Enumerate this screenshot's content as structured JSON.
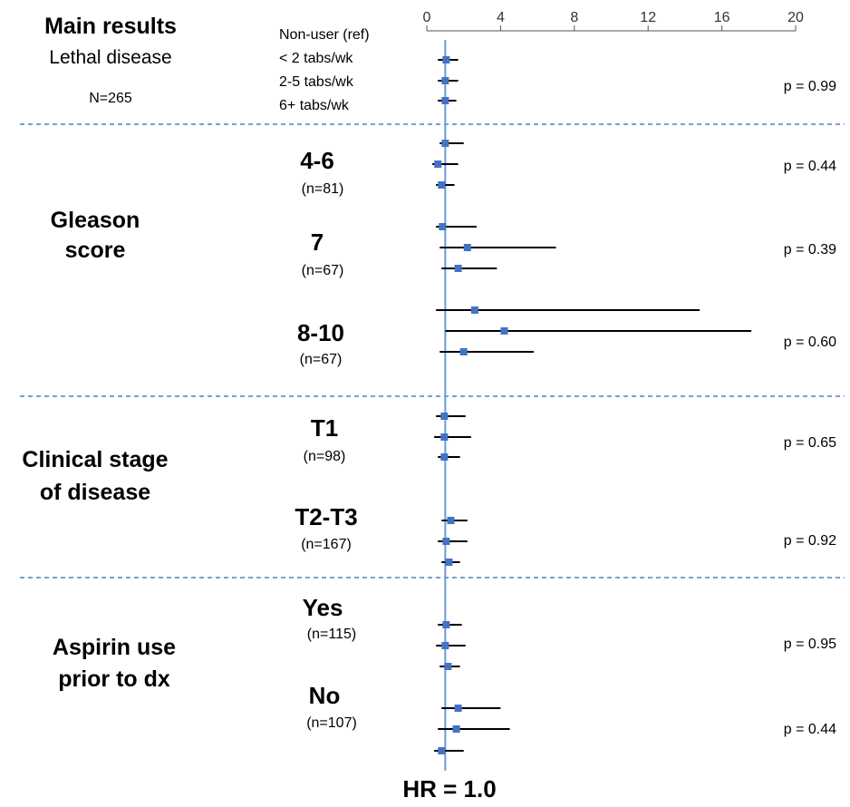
{
  "header": {
    "title": "Main results",
    "subtitle": "Lethal disease",
    "n_label": "N=265",
    "ref_labels": [
      "Non-user (ref)",
      "< 2 tabs/wk",
      "2-5 tabs/wk",
      "6+ tabs/wk"
    ]
  },
  "sections": {
    "gleason_title_1": "Gleason",
    "gleason_title_2": "score",
    "stage_title_1": "Clinical stage",
    "stage_title_2": "of disease",
    "aspirin_title_1": "Aspirin use",
    "aspirin_title_2": "prior to dx"
  },
  "subgroups": {
    "g46": {
      "label": "4-6",
      "n": "(n=81)"
    },
    "g7": {
      "label": "7",
      "n": "(n=67)"
    },
    "g810": {
      "label": "8-10",
      "n": "(n=67)"
    },
    "t1": {
      "label": "T1",
      "n": "(n=98)"
    },
    "t2t3": {
      "label": "T2-T3",
      "n": "(n=167)"
    },
    "yes": {
      "label": "Yes",
      "n": "(n=115)"
    },
    "no": {
      "label": "No",
      "n": "(n=107)"
    }
  },
  "footer": {
    "hr_label": "HR = 1.0"
  },
  "colors": {
    "marker": "#4472c4",
    "ref_line": "#6a9bd8",
    "dashed": "#4f81bd",
    "ci": "#000000"
  },
  "chart_data": {
    "type": "scatter",
    "title": "",
    "xlabel": "HR = 1.0",
    "xlim": [
      0,
      20
    ],
    "x_ticks": [
      0,
      4,
      8,
      12,
      16,
      20
    ],
    "reference_line": 1.0,
    "grid": false,
    "rows": [
      {
        "group": "Main results",
        "hr": 1.05,
        "lo": 0.6,
        "hi": 1.7
      },
      {
        "group": "Main results",
        "hr": 1.0,
        "lo": 0.6,
        "hi": 1.7
      },
      {
        "group": "Main results",
        "hr": 1.0,
        "lo": 0.6,
        "hi": 1.6
      },
      {
        "group": "Gleason 4-6",
        "hr": 1.0,
        "lo": 0.7,
        "hi": 2.0
      },
      {
        "group": "Gleason 4-6",
        "hr": 0.6,
        "lo": 0.3,
        "hi": 1.7
      },
      {
        "group": "Gleason 4-6",
        "hr": 0.8,
        "lo": 0.5,
        "hi": 1.5
      },
      {
        "group": "Gleason 7",
        "hr": 0.85,
        "lo": 0.5,
        "hi": 2.7
      },
      {
        "group": "Gleason 7",
        "hr": 2.2,
        "lo": 0.7,
        "hi": 7.0
      },
      {
        "group": "Gleason 7",
        "hr": 1.7,
        "lo": 0.8,
        "hi": 3.8
      },
      {
        "group": "Gleason 8-10",
        "hr": 2.6,
        "lo": 0.5,
        "hi": 14.8
      },
      {
        "group": "Gleason 8-10",
        "hr": 4.2,
        "lo": 1.0,
        "hi": 17.6
      },
      {
        "group": "Gleason 8-10",
        "hr": 2.0,
        "lo": 0.7,
        "hi": 5.8
      },
      {
        "group": "T1",
        "hr": 0.95,
        "lo": 0.5,
        "hi": 2.1
      },
      {
        "group": "T1",
        "hr": 0.95,
        "lo": 0.4,
        "hi": 2.4
      },
      {
        "group": "T1",
        "hr": 0.95,
        "lo": 0.6,
        "hi": 1.8
      },
      {
        "group": "T2-T3",
        "hr": 1.3,
        "lo": 0.8,
        "hi": 2.2
      },
      {
        "group": "T2-T3",
        "hr": 1.05,
        "lo": 0.6,
        "hi": 2.2
      },
      {
        "group": "T2-T3",
        "hr": 1.2,
        "lo": 0.8,
        "hi": 1.8
      },
      {
        "group": "Aspirin Yes",
        "hr": 1.05,
        "lo": 0.6,
        "hi": 1.9
      },
      {
        "group": "Aspirin Yes",
        "hr": 1.0,
        "lo": 0.5,
        "hi": 2.1
      },
      {
        "group": "Aspirin Yes",
        "hr": 1.15,
        "lo": 0.7,
        "hi": 1.8
      },
      {
        "group": "Aspirin No",
        "hr": 1.7,
        "lo": 0.8,
        "hi": 4.0
      },
      {
        "group": "Aspirin No",
        "hr": 1.6,
        "lo": 0.6,
        "hi": 4.5
      },
      {
        "group": "Aspirin No",
        "hr": 0.8,
        "lo": 0.4,
        "hi": 2.0
      }
    ],
    "p_values": [
      "p = 0.99",
      "p = 0.44",
      "p = 0.39",
      "p = 0.60",
      "p = 0.65",
      "p = 0.92",
      "p = 0.95",
      "p = 0.44"
    ]
  }
}
